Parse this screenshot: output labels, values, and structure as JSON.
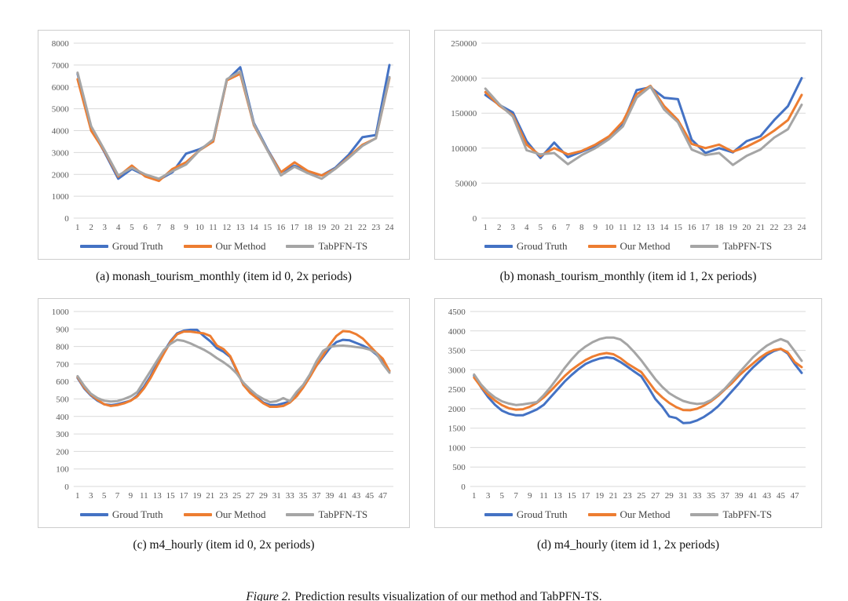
{
  "figure_caption": {
    "label": "Figure 2.",
    "text": "Prediction results visualization of our method and TabPFN-TS."
  },
  "colors": {
    "ground_truth": "#4472C4",
    "our_method": "#ED7D31",
    "tabpfn_ts": "#A5A5A5",
    "gridline": "#D9D9D9",
    "axis_text": "#595959",
    "panel_border": "#CDCDCD"
  },
  "chart_data": [
    {
      "id": "a",
      "type": "line",
      "caption": "(a) monash_tourism_monthly (item id 0, 2x periods)",
      "x_start": 1,
      "x_tick_step": 1,
      "ylim": [
        0,
        8000
      ],
      "ytick_step": 1000,
      "grid": true,
      "legend_position": "bottom",
      "series": [
        {
          "name": "Groud Truth",
          "color": "#4472C4",
          "values": [
            6600,
            4100,
            3000,
            1800,
            2250,
            1950,
            1750,
            2100,
            2950,
            3150,
            3500,
            6300,
            6900,
            4350,
            3150,
            2100,
            2400,
            2100,
            1950,
            2300,
            2900,
            3700,
            3800,
            7000
          ]
        },
        {
          "name": "Our Method",
          "color": "#ED7D31",
          "values": [
            6350,
            4000,
            3050,
            1900,
            2400,
            1900,
            1700,
            2250,
            2550,
            3100,
            3500,
            6300,
            6600,
            4250,
            3100,
            2100,
            2550,
            2150,
            1950,
            2250,
            2800,
            3350,
            3650,
            6400
          ]
        },
        {
          "name": "TabPFN-TS",
          "color": "#A5A5A5",
          "values": [
            6650,
            4200,
            3100,
            1950,
            2300,
            2000,
            1800,
            2150,
            2450,
            3100,
            3600,
            6350,
            6700,
            4300,
            3100,
            1950,
            2350,
            2050,
            1800,
            2250,
            2750,
            3300,
            3650,
            6450
          ]
        }
      ]
    },
    {
      "id": "b",
      "type": "line",
      "caption": "(b) monash_tourism_monthly (item id 1, 2x periods)",
      "x_start": 1,
      "x_tick_step": 1,
      "ylim": [
        0,
        250000
      ],
      "ytick_step": 50000,
      "grid": true,
      "legend_position": "bottom",
      "series": [
        {
          "name": "Groud Truth",
          "color": "#4472C4",
          "values": [
            176000,
            162000,
            151000,
            110000,
            86000,
            108000,
            87000,
            95000,
            103000,
            115000,
            135000,
            183000,
            187000,
            172000,
            170000,
            112000,
            93000,
            100000,
            94000,
            110000,
            117000,
            140000,
            160000,
            200000
          ]
        },
        {
          "name": "Our Method",
          "color": "#ED7D31",
          "values": [
            180000,
            161000,
            147000,
            105000,
            89000,
            100000,
            91000,
            96000,
            105000,
            117000,
            138000,
            177000,
            189000,
            160000,
            140000,
            106000,
            100000,
            105000,
            95000,
            102000,
            112000,
            125000,
            140000,
            176000
          ]
        },
        {
          "name": "TabPFN-TS",
          "color": "#A5A5A5",
          "values": [
            185000,
            163000,
            145000,
            97000,
            91000,
            93000,
            77000,
            90000,
            100000,
            113000,
            131000,
            172000,
            188000,
            155000,
            137000,
            98000,
            90000,
            93000,
            76000,
            89000,
            98000,
            115000,
            127000,
            162000
          ]
        }
      ]
    },
    {
      "id": "c",
      "type": "line",
      "caption": "(c) m4_hourly (item id 0, 2x periods)",
      "x_start": 1,
      "x_tick_step": 2,
      "ylim": [
        0,
        1000
      ],
      "ytick_step": 100,
      "grid": true,
      "legend_position": "bottom",
      "series": [
        {
          "name": "Groud Truth",
          "color": "#4472C4",
          "values": [
            620,
            560,
            520,
            490,
            470,
            465,
            470,
            480,
            490,
            520,
            570,
            630,
            700,
            770,
            830,
            875,
            890,
            895,
            895,
            860,
            830,
            790,
            770,
            740,
            660,
            580,
            540,
            510,
            480,
            465,
            465,
            475,
            485,
            520,
            570,
            630,
            690,
            740,
            790,
            825,
            838,
            835,
            820,
            805,
            785,
            755,
            715,
            660
          ]
        },
        {
          "name": "Our Method",
          "color": "#ED7D31",
          "values": [
            625,
            565,
            525,
            495,
            470,
            460,
            465,
            475,
            490,
            515,
            560,
            620,
            690,
            760,
            825,
            870,
            885,
            885,
            880,
            875,
            860,
            805,
            785,
            745,
            665,
            580,
            535,
            505,
            475,
            455,
            455,
            460,
            480,
            515,
            565,
            625,
            690,
            750,
            810,
            860,
            888,
            885,
            870,
            845,
            805,
            765,
            730,
            660
          ]
        },
        {
          "name": "TabPFN-TS",
          "color": "#A5A5A5",
          "values": [
            630,
            575,
            530,
            505,
            490,
            485,
            488,
            500,
            515,
            540,
            600,
            660,
            720,
            780,
            815,
            838,
            832,
            818,
            800,
            782,
            760,
            733,
            710,
            682,
            645,
            592,
            555,
            522,
            500,
            482,
            487,
            505,
            487,
            540,
            580,
            640,
            715,
            775,
            798,
            803,
            805,
            802,
            797,
            792,
            782,
            762,
            700,
            650
          ]
        }
      ]
    },
    {
      "id": "d",
      "type": "line",
      "caption": "(d) m4_hourly (item id 1, 2x periods)",
      "x_start": 1,
      "x_tick_step": 2,
      "ylim": [
        0,
        4500
      ],
      "ytick_step": 500,
      "grid": true,
      "legend_position": "bottom",
      "series": [
        {
          "name": "Groud Truth",
          "color": "#4472C4",
          "values": [
            2850,
            2550,
            2300,
            2100,
            1950,
            1870,
            1830,
            1830,
            1900,
            1980,
            2100,
            2300,
            2500,
            2700,
            2870,
            3020,
            3150,
            3230,
            3290,
            3320,
            3300,
            3200,
            3080,
            2950,
            2830,
            2550,
            2250,
            2050,
            1800,
            1760,
            1630,
            1640,
            1700,
            1790,
            1910,
            2060,
            2250,
            2450,
            2650,
            2870,
            3060,
            3220,
            3380,
            3480,
            3540,
            3420,
            3150,
            2920
          ]
        },
        {
          "name": "Our Method",
          "color": "#ED7D31",
          "values": [
            2800,
            2560,
            2360,
            2210,
            2090,
            2010,
            1975,
            1985,
            2050,
            2150,
            2290,
            2460,
            2650,
            2840,
            3000,
            3130,
            3250,
            3340,
            3400,
            3430,
            3400,
            3300,
            3160,
            3050,
            2940,
            2700,
            2460,
            2290,
            2150,
            2040,
            1965,
            1960,
            2000,
            2080,
            2190,
            2330,
            2500,
            2660,
            2850,
            3010,
            3160,
            3310,
            3430,
            3510,
            3540,
            3450,
            3200,
            3070
          ]
        },
        {
          "name": "TabPFN-TS",
          "color": "#A5A5A5",
          "values": [
            2880,
            2620,
            2430,
            2290,
            2190,
            2130,
            2095,
            2110,
            2140,
            2170,
            2350,
            2560,
            2800,
            3050,
            3270,
            3460,
            3600,
            3710,
            3790,
            3830,
            3830,
            3780,
            3640,
            3450,
            3240,
            3000,
            2760,
            2560,
            2400,
            2290,
            2200,
            2150,
            2120,
            2140,
            2220,
            2360,
            2520,
            2720,
            2920,
            3120,
            3320,
            3480,
            3620,
            3720,
            3790,
            3720,
            3480,
            3230
          ]
        }
      ]
    }
  ]
}
